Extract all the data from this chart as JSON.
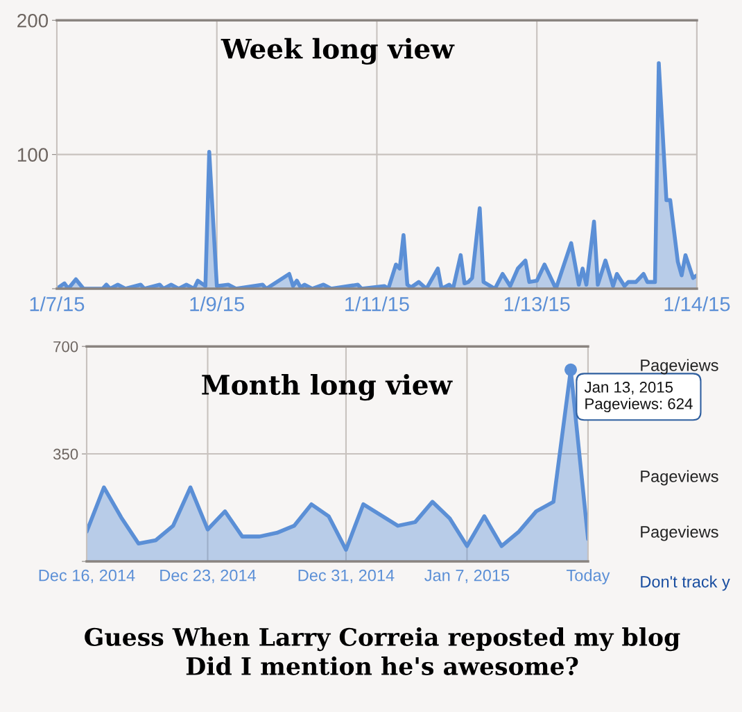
{
  "chart_data": [
    {
      "type": "area",
      "title": "Week long view",
      "x": [
        "2015-01-07T00:00",
        "2015-01-07T02:00",
        "2015-01-07T03:00",
        "2015-01-07T05:00",
        "2015-01-07T07:00",
        "2015-01-07T12:00",
        "2015-01-07T13:00",
        "2015-01-07T14:00",
        "2015-01-07T16:00",
        "2015-01-07T18:00",
        "2015-01-07T22:00",
        "2015-01-07T23:00",
        "2015-01-08T03:00",
        "2015-01-08T04:00",
        "2015-01-08T06:00",
        "2015-01-08T08:00",
        "2015-01-08T10:00",
        "2015-01-08T12:00",
        "2015-01-08T13:00",
        "2015-01-08T15:00",
        "2015-01-08T16:00",
        "2015-01-08T18:00",
        "2015-01-08T21:00",
        "2015-01-08T23:00",
        "2015-01-09T06:00",
        "2015-01-09T07:00",
        "2015-01-09T13:00",
        "2015-01-09T14:00",
        "2015-01-09T15:00",
        "2015-01-09T16:00",
        "2015-01-09T17:00",
        "2015-01-09T19:00",
        "2015-01-09T22:00",
        "2015-01-10T00:00",
        "2015-01-10T07:00",
        "2015-01-10T08:00",
        "2015-01-10T14:00",
        "2015-01-10T15:00",
        "2015-01-10T17:00",
        "2015-01-10T18:00",
        "2015-01-10T19:00",
        "2015-01-10T20:00",
        "2015-01-10T21:00",
        "2015-01-10T23:00",
        "2015-01-11T01:00",
        "2015-01-11T04:00",
        "2015-01-11T05:00",
        "2015-01-11T07:00",
        "2015-01-11T08:00",
        "2015-01-11T10:00",
        "2015-01-11T11:00",
        "2015-01-11T12:00",
        "2015-01-11T13:00",
        "2015-01-11T15:00",
        "2015-01-11T16:00",
        "2015-01-11T19:00",
        "2015-01-11T21:00",
        "2015-01-11T23:00",
        "2015-01-12T01:00",
        "2015-01-12T03:00",
        "2015-01-12T04:00",
        "2015-01-12T06:00",
        "2015-01-12T08:00",
        "2015-01-12T11:00",
        "2015-01-12T15:00",
        "2015-01-12T17:00",
        "2015-01-12T18:00",
        "2015-01-12T19:00",
        "2015-01-12T21:00",
        "2015-01-12T22:00",
        "2015-01-13T00:00",
        "2015-01-13T02:00",
        "2015-01-13T03:00",
        "2015-01-13T05:00",
        "2015-01-13T06:00",
        "2015-01-13T08:00",
        "2015-01-13T10:00",
        "2015-01-13T11:00",
        "2015-01-13T13:00",
        "2015-01-13T14:00",
        "2015-01-13T16:00",
        "2015-01-13T17:00",
        "2015-01-13T19:00",
        "2015-01-13T20:00",
        "2015-01-13T21:00",
        "2015-01-13T23:00",
        "2015-01-14T00:00"
      ],
      "series": [
        {
          "color": "#5b8fd6",
          "values": [
            0,
            4,
            0,
            7,
            0,
            0,
            3,
            0,
            3,
            0,
            3,
            0,
            3,
            0,
            3,
            0,
            3,
            0,
            6,
            2,
            102,
            2,
            3,
            0,
            3,
            0,
            11,
            2,
            6,
            1,
            3,
            0,
            3,
            0,
            3,
            0,
            2,
            0,
            18,
            15,
            40,
            3,
            1,
            5,
            0,
            15,
            0,
            3,
            0,
            25,
            4,
            5,
            8,
            60,
            5,
            0,
            11,
            2,
            15,
            21,
            5,
            6,
            18,
            0,
            34,
            3,
            15,
            3,
            50,
            3,
            21,
            2,
            11,
            2,
            5,
            5,
            11,
            5,
            5,
            168,
            66,
            66,
            20,
            10,
            25,
            8,
            10
          ]
        }
      ],
      "xlim": [
        "2015-01-07T00:00",
        "2015-01-14T00:00"
      ],
      "xticks": [
        {
          "value": "2015-01-07T00:00",
          "label": "1/7/15"
        },
        {
          "value": "2015-01-08T18:00",
          "label": "1/9/15"
        },
        {
          "value": "2015-01-10T12:00",
          "label": "1/11/15"
        },
        {
          "value": "2015-01-12T06:00",
          "label": "1/13/15"
        },
        {
          "value": "2015-01-14T00:00",
          "label": "1/14/15"
        }
      ],
      "ylim": [
        0,
        200
      ],
      "yticks": [
        {
          "value": 0,
          "label": null
        },
        100,
        200
      ],
      "grid": true
    },
    {
      "type": "area",
      "title": "Month long view",
      "x": [
        "2014-12-16",
        "2014-12-17",
        "2014-12-18",
        "2014-12-19",
        "2014-12-20",
        "2014-12-21",
        "2014-12-22",
        "2014-12-23",
        "2014-12-24",
        "2014-12-25",
        "2014-12-26",
        "2014-12-27",
        "2014-12-28",
        "2014-12-29",
        "2014-12-30",
        "2014-12-31",
        "2015-01-01",
        "2015-01-02",
        "2015-01-03",
        "2015-01-04",
        "2015-01-05",
        "2015-01-06",
        "2015-01-07",
        "2015-01-08",
        "2015-01-09",
        "2015-01-10",
        "2015-01-11",
        "2015-01-12",
        "2015-01-13",
        "2015-01-14"
      ],
      "series": [
        {
          "color": "#5b8fd6",
          "values": [
            97,
            241,
            143,
            58,
            69,
            116,
            241,
            104,
            163,
            81,
            81,
            93,
            116,
            186,
            147,
            38,
            186,
            151,
            116,
            128,
            194,
            140,
            50,
            147,
            50,
            97,
            163,
            194,
            624,
            73
          ]
        }
      ],
      "xlim": [
        "2014-12-16",
        "2015-01-14"
      ],
      "xticks": [
        {
          "value": "2014-12-16",
          "label": "Dec 16, 2014"
        },
        {
          "value": "2014-12-23",
          "label": "Dec 23, 2014"
        },
        {
          "value": "2014-12-31",
          "label": "Dec 31, 2014"
        },
        {
          "value": "2015-01-07",
          "label": "Jan 7, 2015"
        },
        {
          "value": "2015-01-14",
          "label": "Today"
        }
      ],
      "ylim": [
        0,
        700
      ],
      "yticks": [
        {
          "value": 0,
          "label": null
        },
        350,
        700
      ],
      "grid": true,
      "annotations": [
        {
          "text": "Jan 13, 2015\nPageviews: 624",
          "x": "2015-01-13",
          "y": 624
        },
        "Pageviews",
        "Pageviews",
        "Pageviews",
        "Don't track y",
        "Guess When Larry Correia reposted my blog\nDid I mention he's awesome?"
      ]
    }
  ]
}
